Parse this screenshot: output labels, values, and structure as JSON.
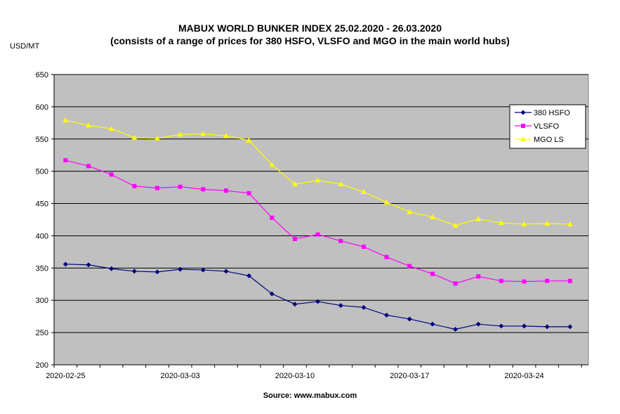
{
  "title_line1": "MABUX WORLD BUNKER INDEX 25.02.2020 - 26.03.2020",
  "title_line2": "(consists of a range of prices for 380 HSFO, VLSFO and MGO in the main world hubs)",
  "ylabel": "USD/MT",
  "source": "Source: www.mabux.com",
  "colors": {
    "plot_bg": "#c0c0c0",
    "hsfo": "#000080",
    "vlsfo": "#ff00ff",
    "mgo": "#ffff00"
  },
  "chart_data": {
    "type": "line",
    "ylim": [
      200,
      650
    ],
    "yticks": [
      200,
      250,
      300,
      350,
      400,
      450,
      500,
      550,
      600,
      650
    ],
    "xtick_labels": [
      "2020-02-25",
      "2020-03-03",
      "2020-03-10",
      "2020-03-17",
      "2020-03-24"
    ],
    "grid": true,
    "legend_position": "top-right",
    "x": [
      "2020-02-25",
      "2020-02-26",
      "2020-02-27",
      "2020-02-28",
      "2020-03-02",
      "2020-03-03",
      "2020-03-04",
      "2020-03-05",
      "2020-03-06",
      "2020-03-09",
      "2020-03-10",
      "2020-03-11",
      "2020-03-12",
      "2020-03-13",
      "2020-03-16",
      "2020-03-17",
      "2020-03-18",
      "2020-03-19",
      "2020-03-20",
      "2020-03-23",
      "2020-03-24",
      "2020-03-25",
      "2020-03-26"
    ],
    "series": [
      {
        "name": "380 HSFO",
        "marker": "diamond",
        "values": [
          356,
          355,
          349,
          345,
          344,
          348,
          347,
          345,
          338,
          310,
          294,
          298,
          292,
          289,
          277,
          271,
          263,
          255,
          263,
          260,
          260,
          259,
          259
        ]
      },
      {
        "name": "VLSFO",
        "marker": "square",
        "values": [
          517,
          508,
          495,
          477,
          474,
          476,
          472,
          470,
          466,
          428,
          395,
          402,
          392,
          383,
          367,
          353,
          341,
          326,
          337,
          330,
          329,
          330,
          330
        ]
      },
      {
        "name": "MGO LS",
        "marker": "triangle",
        "values": [
          579,
          571,
          566,
          552,
          551,
          557,
          558,
          555,
          548,
          510,
          480,
          486,
          480,
          468,
          452,
          437,
          429,
          416,
          426,
          420,
          418,
          419,
          418
        ]
      }
    ]
  }
}
